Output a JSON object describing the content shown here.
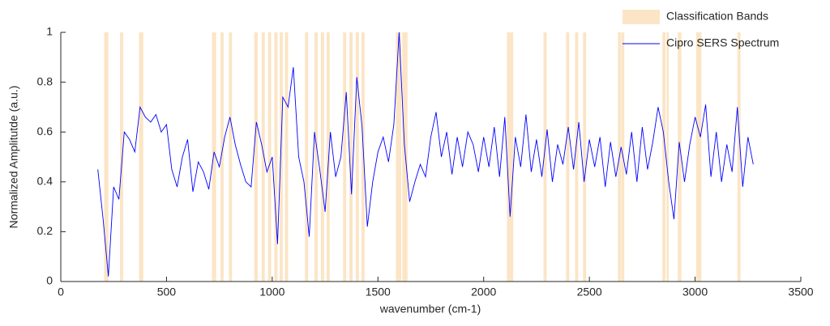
{
  "chart_data": {
    "type": "line",
    "xlabel": "wavenumber  (cm-1)",
    "ylabel": "Normalized Amplitutde  (a.u.)",
    "xlim": [
      0,
      3500
    ],
    "xticks": [
      0,
      500,
      1000,
      1500,
      2000,
      2500,
      3000,
      3500
    ],
    "ylim": [
      0,
      1
    ],
    "yticks": [
      0,
      0.2,
      0.4,
      0.6,
      0.8,
      1
    ],
    "legend": "northeast",
    "bands": {
      "name": "Classification Bands",
      "color": "#fbe5c6",
      "ranges": [
        [
          205,
          225
        ],
        [
          280,
          295
        ],
        [
          370,
          390
        ],
        [
          715,
          735
        ],
        [
          755,
          770
        ],
        [
          795,
          810
        ],
        [
          915,
          932
        ],
        [
          950,
          965
        ],
        [
          980,
          995
        ],
        [
          1010,
          1025
        ],
        [
          1035,
          1050
        ],
        [
          1060,
          1075
        ],
        [
          1155,
          1170
        ],
        [
          1200,
          1215
        ],
        [
          1230,
          1245
        ],
        [
          1257,
          1272
        ],
        [
          1335,
          1350
        ],
        [
          1365,
          1380
        ],
        [
          1395,
          1410
        ],
        [
          1422,
          1437
        ],
        [
          1585,
          1610
        ],
        [
          1615,
          1640
        ],
        [
          2110,
          2140
        ],
        [
          2283,
          2298
        ],
        [
          2390,
          2405
        ],
        [
          2432,
          2447
        ],
        [
          2470,
          2485
        ],
        [
          2635,
          2650
        ],
        [
          2652,
          2665
        ],
        [
          2845,
          2860
        ],
        [
          2865,
          2875
        ],
        [
          2918,
          2935
        ],
        [
          3005,
          3030
        ],
        [
          3200,
          3215
        ]
      ]
    },
    "x": [
      175,
      200,
      225,
      250,
      275,
      300,
      325,
      350,
      375,
      400,
      425,
      450,
      475,
      500,
      525,
      550,
      575,
      600,
      625,
      650,
      675,
      700,
      725,
      750,
      775,
      800,
      825,
      850,
      875,
      900,
      925,
      950,
      975,
      1000,
      1025,
      1050,
      1075,
      1100,
      1125,
      1150,
      1175,
      1200,
      1225,
      1250,
      1275,
      1300,
      1325,
      1350,
      1375,
      1400,
      1425,
      1450,
      1475,
      1500,
      1525,
      1550,
      1575,
      1600,
      1625,
      1650,
      1675,
      1700,
      1725,
      1750,
      1775,
      1800,
      1825,
      1850,
      1875,
      1900,
      1925,
      1950,
      1975,
      2000,
      2025,
      2050,
      2075,
      2100,
      2125,
      2150,
      2175,
      2200,
      2225,
      2250,
      2275,
      2300,
      2325,
      2350,
      2375,
      2400,
      2425,
      2450,
      2475,
      2500,
      2525,
      2550,
      2575,
      2600,
      2625,
      2650,
      2675,
      2700,
      2725,
      2750,
      2775,
      2800,
      2825,
      2850,
      2875,
      2900,
      2925,
      2950,
      2975,
      3000,
      3025,
      3050,
      3075,
      3100,
      3125,
      3150,
      3175,
      3200,
      3225,
      3250,
      3275
    ],
    "series": [
      {
        "name": "Cipro SERS Spectrum",
        "color": "#0000ff",
        "values": [
          0.45,
          0.25,
          0.02,
          0.38,
          0.33,
          0.6,
          0.57,
          0.52,
          0.7,
          0.66,
          0.64,
          0.67,
          0.6,
          0.63,
          0.45,
          0.38,
          0.5,
          0.57,
          0.36,
          0.48,
          0.44,
          0.37,
          0.52,
          0.46,
          0.58,
          0.66,
          0.55,
          0.47,
          0.4,
          0.38,
          0.64,
          0.55,
          0.44,
          0.5,
          0.15,
          0.74,
          0.7,
          0.86,
          0.5,
          0.4,
          0.18,
          0.6,
          0.45,
          0.28,
          0.6,
          0.42,
          0.5,
          0.76,
          0.35,
          0.82,
          0.62,
          0.22,
          0.4,
          0.52,
          0.58,
          0.48,
          0.63,
          1.0,
          0.55,
          0.32,
          0.4,
          0.47,
          0.42,
          0.58,
          0.68,
          0.5,
          0.6,
          0.43,
          0.58,
          0.46,
          0.6,
          0.55,
          0.44,
          0.58,
          0.46,
          0.62,
          0.42,
          0.66,
          0.26,
          0.58,
          0.46,
          0.67,
          0.44,
          0.57,
          0.42,
          0.61,
          0.4,
          0.55,
          0.47,
          0.62,
          0.45,
          0.64,
          0.4,
          0.57,
          0.46,
          0.58,
          0.38,
          0.56,
          0.42,
          0.54,
          0.43,
          0.6,
          0.4,
          0.62,
          0.45,
          0.56,
          0.7,
          0.6,
          0.4,
          0.25,
          0.56,
          0.4,
          0.55,
          0.66,
          0.58,
          0.71,
          0.42,
          0.6,
          0.4,
          0.55,
          0.44,
          0.7,
          0.38,
          0.58,
          0.47
        ]
      }
    ]
  }
}
